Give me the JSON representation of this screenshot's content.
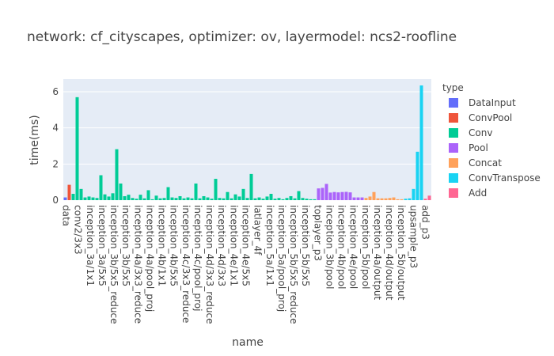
{
  "chart_data": {
    "type": "bar",
    "title": "network: cf_cityscapes, optimizer: ov, layermodel: ncs2-roofline",
    "xlabel": "name",
    "ylabel": "time(ms)",
    "ylim": [
      0,
      6.7
    ],
    "yticks": [
      0,
      2,
      4,
      6
    ],
    "grid": true,
    "legend": {
      "title": "type",
      "placement": "right"
    },
    "x_tick_labels": [
      "data",
      "conv2/3x3",
      "inception_3a/1x1",
      "inception_3a/5x5",
      "inception_3b/5x5_reduce",
      "inception_3b/5x5",
      "inception_4a/3x3_reduce",
      "inception_4a/pool_proj",
      "inception_4b/1x1",
      "inception_4b/5x5",
      "inception_4c/3x3_reduce",
      "inception_4c/pool_proj",
      "inception_4d/3x3_reduce",
      "inception_4d/3x3",
      "inception_4e/1x1",
      "inception_4e/5x5",
      "latlayer_4f",
      "inception_5a/1x1",
      "inception_5a/pool_proj",
      "inception_5b/5x5_reduce",
      "inception_5b/5x5",
      "toplayer_p3",
      "inception_3b/pool",
      "inception_4b/pool",
      "inception_4e/pool",
      "inception_5b/pool",
      "inception_4a/output",
      "inception_4d/output",
      "inception_5b/output",
      "upsample_p3",
      "add_p3"
    ],
    "series": [
      {
        "name": "DataInput",
        "color": "#636efa",
        "values": [
          0.15
        ]
      },
      {
        "name": "ConvPool",
        "color": "#EF553B",
        "values": [
          0.85
        ]
      },
      {
        "name": "Conv",
        "color": "#00cc96",
        "values": [
          0.35,
          5.7,
          0.62,
          0.15,
          0.2,
          0.15,
          0.12,
          1.38,
          0.32,
          0.2,
          0.38,
          2.82,
          0.92,
          0.22,
          0.3,
          0.12,
          0.08,
          0.3,
          0.1,
          0.55,
          0.05,
          0.25,
          0.1,
          0.12,
          0.72,
          0.15,
          0.12,
          0.22,
          0.1,
          0.15,
          0.1,
          0.92,
          0.1,
          0.22,
          0.15,
          0.08,
          1.18,
          0.12,
          0.1,
          0.45,
          0.1,
          0.32,
          0.2,
          0.62,
          0.12,
          1.45,
          0.1,
          0.15,
          0.08,
          0.2,
          0.35,
          0.08,
          0.12,
          0.05,
          0.12,
          0.22,
          0.1,
          0.5,
          0.12,
          0.08,
          0.05,
          0.05
        ]
      },
      {
        "name": "Pool",
        "color": "#ab63fa",
        "values": [
          0.65,
          0.68,
          0.9,
          0.42,
          0.45,
          0.43,
          0.45,
          0.46,
          0.43,
          0.15,
          0.15,
          0.15
        ]
      },
      {
        "name": "Concat",
        "color": "#FFA15A",
        "values": [
          0.12,
          0.2,
          0.45,
          0.1,
          0.1,
          0.1,
          0.12,
          0.15,
          0.05,
          0.05
        ]
      },
      {
        "name": "ConvTranspose",
        "color": "#19d3f3",
        "values": [
          0.08,
          0.1,
          0.62,
          2.68,
          6.35
        ]
      },
      {
        "name": "Add",
        "color": "#FF6692",
        "values": [
          0.08,
          0.25
        ]
      }
    ]
  }
}
